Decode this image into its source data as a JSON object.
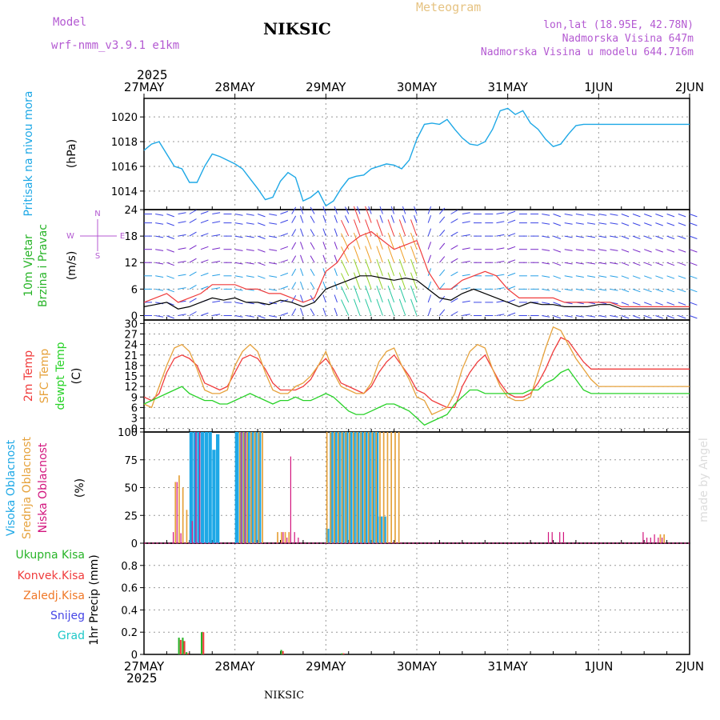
{
  "header": {
    "model_label": "Model",
    "model_name": "wrf-nmm_v3.9.1 e1km",
    "station": "NIKSIC",
    "product": "Meteogram",
    "coords": "lon,lat (18.95E, 42.78N)",
    "elevation": "Nadmorska Visina 647m",
    "model_elevation": "Nadmorska Visina u modelu 644.716m",
    "year": "2025",
    "footer_station": "NIKSIC",
    "credit": "made by Angel"
  },
  "colors": {
    "pressure": "#1ea8e6",
    "temp": "#f03c3c",
    "sfc_temp": "#e6a23c",
    "dewpt": "#28d228",
    "high_cloud": "#1ea8e6",
    "mid_cloud": "#e6a23c",
    "low_cloud": "#d2147d",
    "total_precip": "#28b428",
    "conv_precip": "#f03c3c",
    "frozen_precip": "#f07828",
    "snow": "#4646e6",
    "hail": "#1ec8c8",
    "model_label": "#b45ad2",
    "product": "#e6c382"
  },
  "chart_data": [
    {
      "type": "line",
      "name": "pressure",
      "ylabel_left": "Pritisak na nivou mora",
      "ylabel_unit": "(hPa)",
      "ylim": [
        1012.5,
        1021.5
      ],
      "yticks": [
        1014,
        1016,
        1018,
        1020
      ],
      "x_dates": [
        "27MAY",
        "28MAY",
        "29MAY",
        "30MAY",
        "31MAY",
        "1JUN",
        "2JUN"
      ],
      "xlim_hours": [
        0,
        144
      ],
      "x_hours": [
        0,
        2,
        4,
        6,
        8,
        10,
        12,
        14,
        16,
        18,
        20,
        22,
        24,
        26,
        28,
        30,
        32,
        34,
        36,
        38,
        40,
        42,
        44,
        46,
        48,
        50,
        52,
        54,
        56,
        58,
        60,
        62,
        64,
        66,
        68,
        70,
        72,
        74,
        76,
        78,
        80,
        82,
        84,
        86,
        88,
        90,
        92,
        94,
        96,
        98,
        100,
        102,
        104,
        106,
        108,
        110,
        112,
        114,
        116,
        118,
        120,
        122,
        124,
        126,
        128,
        130,
        132,
        134,
        136,
        138,
        140,
        142,
        144
      ],
      "values": [
        1017.3,
        1017.8,
        1018.0,
        1017.0,
        1016.0,
        1015.8,
        1014.7,
        1014.7,
        1016.0,
        1017.0,
        1016.8,
        1016.5,
        1016.2,
        1015.8,
        1015.0,
        1014.2,
        1013.3,
        1013.5,
        1014.8,
        1015.5,
        1015.1,
        1013.2,
        1013.5,
        1014.0,
        1012.8,
        1013.2,
        1014.2,
        1015.0,
        1015.2,
        1015.3,
        1015.8,
        1016.0,
        1016.2,
        1016.1,
        1015.8,
        1016.5,
        1018.2,
        1019.4,
        1019.5,
        1019.4,
        1019.8,
        1019.0,
        1018.3,
        1017.8,
        1017.7,
        1018.0,
        1019.0,
        1020.5,
        1020.7,
        1020.2,
        1020.5,
        1019.5,
        1019.0,
        1018.2,
        1017.6,
        1017.8,
        1018.6,
        1019.3,
        1019.4,
        1019.4,
        1019.4,
        1019.4,
        1019.4,
        1019.4,
        1019.4,
        1019.4,
        1019.4,
        1019.4,
        1019.4,
        1019.4,
        1019.4,
        1019.4,
        1019.4
      ]
    },
    {
      "type": "line",
      "name": "wind",
      "ylabel_left": [
        "10m Vjetar",
        "Brzina i Pravac"
      ],
      "ylabel_unit": "(m/s)",
      "compass_labels": [
        "N",
        "S",
        "W",
        "E"
      ],
      "ylim": [
        -1,
        24
      ],
      "yticks": [
        0,
        6,
        12,
        18,
        24
      ],
      "x_hours": [
        0,
        3,
        6,
        9,
        12,
        15,
        18,
        21,
        24,
        27,
        30,
        33,
        36,
        39,
        42,
        45,
        48,
        51,
        54,
        57,
        60,
        63,
        66,
        69,
        72,
        75,
        78,
        81,
        84,
        87,
        90,
        93,
        96,
        99,
        102,
        105,
        108,
        111,
        114,
        117,
        120,
        123,
        126,
        129,
        132,
        135,
        138,
        141,
        144
      ],
      "speed": [
        2,
        2.5,
        3,
        1.5,
        2,
        3,
        4,
        3.5,
        4,
        3,
        3,
        2.5,
        3.5,
        3,
        2,
        3,
        6,
        7,
        8,
        9,
        9,
        8.5,
        8,
        8.5,
        8,
        6,
        4,
        3.5,
        5,
        6,
        5,
        4,
        3,
        2,
        3,
        2.5,
        2.5,
        2,
        2,
        2,
        2.5,
        2.5,
        1.5,
        1.5,
        1.5,
        1.5,
        1.5,
        1.5,
        1.5
      ],
      "gust": [
        3,
        4,
        5,
        3,
        4,
        5,
        7,
        7,
        7,
        6,
        6,
        5,
        5,
        4,
        3,
        4,
        10,
        12,
        16,
        18,
        19,
        17,
        15,
        16,
        17,
        10,
        6,
        6,
        8,
        9,
        10,
        9,
        6,
        4,
        4,
        4,
        4,
        3,
        3,
        3,
        3,
        3,
        2,
        2,
        2,
        2,
        2,
        2,
        2
      ],
      "direction_deg": [
        90,
        80,
        70,
        100,
        120,
        110,
        100,
        90,
        80,
        80,
        70,
        80,
        110,
        150,
        200,
        210,
        200,
        200,
        205,
        200,
        200,
        200,
        200,
        200,
        200,
        160,
        140,
        120,
        100,
        90,
        90,
        100,
        110,
        90,
        90,
        80,
        70,
        80,
        80,
        80,
        80,
        80,
        70,
        70,
        70,
        70,
        70,
        70,
        70
      ]
    },
    {
      "type": "line",
      "name": "temperature",
      "ylabel_left": [
        "2m Temp",
        "SFC Temp",
        "dewpt Temp"
      ],
      "ylabel_unit": "(C)",
      "ylim": [
        -1,
        31
      ],
      "yticks": [
        0,
        3,
        6,
        9,
        12,
        15,
        18,
        21,
        24,
        27,
        30
      ],
      "x_hours": [
        0,
        2,
        4,
        6,
        8,
        10,
        12,
        14,
        16,
        18,
        20,
        22,
        24,
        26,
        28,
        30,
        32,
        34,
        36,
        38,
        40,
        42,
        44,
        46,
        48,
        50,
        52,
        54,
        56,
        58,
        60,
        62,
        64,
        66,
        68,
        70,
        72,
        74,
        76,
        78,
        80,
        82,
        84,
        86,
        88,
        90,
        92,
        94,
        96,
        98,
        100,
        102,
        104,
        106,
        108,
        110,
        112,
        114,
        116,
        118,
        120,
        122,
        124,
        126,
        128,
        130,
        132,
        134,
        136,
        138,
        140,
        142,
        144
      ],
      "series": [
        {
          "name": "2m Temp",
          "values": [
            9,
            8,
            10,
            16,
            20,
            21,
            20,
            18,
            13,
            12,
            11,
            12,
            16,
            20,
            21,
            20,
            17,
            13,
            11,
            11,
            11,
            12,
            14,
            18,
            20,
            17,
            13,
            12,
            11,
            10,
            12,
            16,
            19,
            21,
            18,
            15,
            11,
            10,
            8,
            7,
            6,
            6,
            12,
            16,
            19,
            21,
            17,
            13,
            10,
            9,
            9,
            10,
            13,
            17,
            22,
            26,
            25,
            22,
            19,
            17,
            17,
            17,
            17,
            17,
            17,
            17,
            17,
            17,
            17,
            17,
            17,
            17,
            17
          ]
        },
        {
          "name": "SFC Temp",
          "values": [
            7,
            6,
            12,
            18,
            23,
            24,
            22,
            17,
            11,
            10,
            10,
            11,
            18,
            22,
            24,
            22,
            16,
            11,
            10,
            10,
            12,
            13,
            15,
            18,
            22,
            16,
            12,
            11,
            10,
            10,
            13,
            19,
            22,
            23,
            18,
            14,
            9,
            8,
            4,
            5,
            6,
            10,
            17,
            22,
            24,
            23,
            17,
            12,
            9,
            8,
            8,
            9,
            16,
            23,
            29,
            28,
            24,
            20,
            17,
            14,
            12,
            12,
            12,
            12,
            12,
            12,
            12,
            12,
            12,
            12,
            12,
            12,
            12
          ]
        },
        {
          "name": "dewpt Temp",
          "values": [
            7,
            8,
            9,
            10,
            11,
            12,
            10,
            9,
            8,
            8,
            7,
            7,
            8,
            9,
            10,
            9,
            8,
            7,
            8,
            8,
            9,
            8,
            8,
            9,
            10,
            9,
            7,
            5,
            4,
            4,
            5,
            6,
            7,
            7,
            6,
            5,
            3,
            1,
            2,
            3,
            4,
            7,
            9,
            11,
            11,
            10,
            10,
            10,
            10,
            10,
            10,
            11,
            11,
            13,
            14,
            16,
            17,
            14,
            11,
            10,
            10,
            10,
            10,
            10,
            10,
            10,
            10,
            10,
            10,
            10,
            10,
            10,
            10
          ]
        }
      ]
    },
    {
      "type": "bar",
      "name": "clouds",
      "ylabel_left": [
        "Visoka Oblacnost",
        "Srednja Oblacnost",
        "Niska Oblacnost"
      ],
      "ylabel_unit": "(%)",
      "ylim": [
        0,
        100
      ],
      "yticks": [
        0,
        25,
        50,
        75,
        100
      ],
      "high": {
        "x_hours": [
          12,
          13,
          14,
          15,
          16,
          17,
          18,
          19,
          24,
          25,
          26,
          27,
          28,
          29,
          30,
          48,
          49,
          50,
          51,
          52,
          53,
          54,
          55,
          56,
          57,
          58,
          59,
          60,
          61,
          62,
          63
        ],
        "values": [
          100,
          100,
          100,
          100,
          100,
          100,
          84,
          98,
          100,
          100,
          100,
          100,
          100,
          100,
          100,
          13,
          100,
          100,
          100,
          100,
          100,
          100,
          100,
          100,
          100,
          100,
          100,
          100,
          100,
          24,
          24
        ]
      },
      "mid": {
        "x_hours": [
          8,
          9,
          10,
          11,
          25,
          26,
          27,
          28,
          29,
          30,
          31,
          35,
          36,
          37,
          38,
          48,
          49,
          50,
          51,
          52,
          53,
          54,
          55,
          56,
          57,
          58,
          59,
          60,
          61,
          62,
          63,
          64,
          65,
          66,
          67,
          136,
          137
        ],
        "values": [
          55,
          61,
          50,
          30,
          100,
          100,
          100,
          100,
          100,
          100,
          100,
          10,
          10,
          10,
          10,
          100,
          100,
          100,
          100,
          100,
          100,
          100,
          100,
          100,
          100,
          100,
          100,
          100,
          100,
          100,
          100,
          100,
          100,
          100,
          100,
          8,
          8
        ]
      },
      "low": {
        "x_hours": [
          7,
          8,
          9,
          12,
          13,
          14,
          25,
          26,
          36,
          37,
          38,
          39,
          40,
          106,
          107,
          109,
          110,
          131,
          132,
          133,
          134,
          135,
          136
        ],
        "values": [
          10,
          55,
          9,
          20,
          100,
          100,
          100,
          100,
          10,
          5,
          78,
          10,
          5,
          10,
          10,
          10,
          10,
          10,
          5,
          5,
          8,
          5,
          5
        ]
      }
    },
    {
      "type": "bar",
      "name": "precipitation",
      "ylabel_left": [
        "Ukupna Kisa",
        "Konvek.Kisa",
        "Zaledj.Kisa",
        "Snijeg",
        "Grad"
      ],
      "ylabel_unit": "1hr Precip (mm)",
      "ylim": [
        0,
        1.0
      ],
      "yticks": [
        0,
        0.2,
        0.4,
        0.6,
        0.8
      ],
      "total": {
        "x_hours": [
          9,
          10,
          11,
          15,
          36,
          52
        ],
        "values": [
          0.15,
          0.15,
          0.02,
          0.2,
          0.04,
          0.01
        ]
      },
      "conv": {
        "x_hours": [
          9,
          10,
          11,
          15,
          36,
          52
        ],
        "values": [
          0.13,
          0.12,
          0.01,
          0.2,
          0.03,
          0.01
        ]
      }
    }
  ]
}
